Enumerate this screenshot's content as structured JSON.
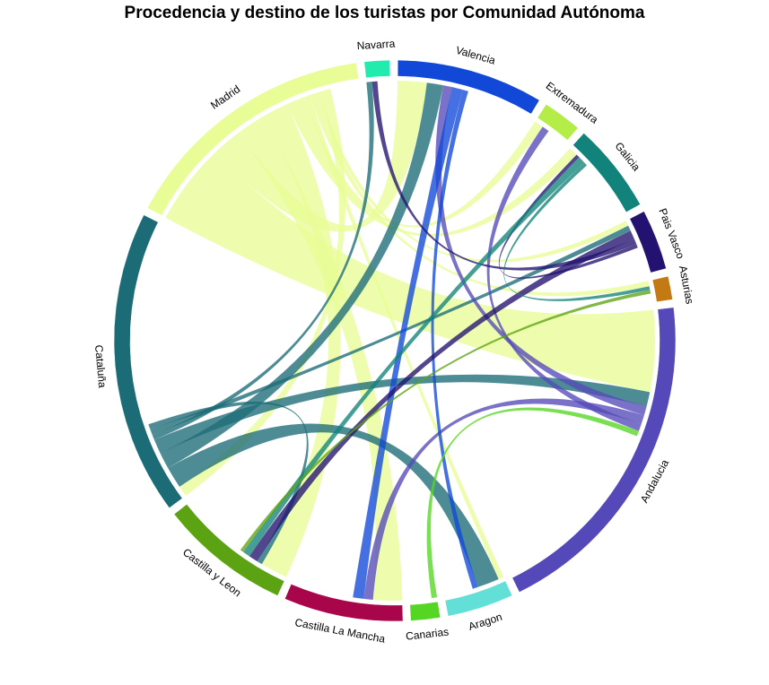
{
  "chart_data": {
    "type": "chord",
    "title": "Procedencia y destino de los turistas por Comunidad Autónoma",
    "sectors": [
      {
        "name": "Valencia",
        "color": "#1148d8",
        "total": 7.5
      },
      {
        "name": "Extremadura",
        "color": "#b4ec48",
        "total": 2.0
      },
      {
        "name": "Galicia",
        "color": "#12837a",
        "total": 4.6
      },
      {
        "name": "Pais Vasco",
        "color": "#23126f",
        "total": 3.1
      },
      {
        "name": "Asturias",
        "color": "#c47a13",
        "total": 1.2
      },
      {
        "name": "Andalucia",
        "color": "#5549b9",
        "total": 17.4
      },
      {
        "name": "Aragon",
        "color": "#62dfd6",
        "total": 3.4
      },
      {
        "name": "Canarias",
        "color": "#55d622",
        "total": 1.5
      },
      {
        "name": "Castilla La Mancha",
        "color": "#a8054a",
        "total": 6.1
      },
      {
        "name": "Castilla y Leon",
        "color": "#5ca313",
        "total": 6.7
      },
      {
        "name": "Cataluña",
        "color": "#1c6c77",
        "total": 15.6
      },
      {
        "name": "Madrid",
        "color": "#e8fd96",
        "total": 13.3
      },
      {
        "name": "Navarra",
        "color": "#21ecae",
        "total": 1.3
      }
    ],
    "flows": [
      {
        "from": "Madrid",
        "to": "Andalucia",
        "value": 4.5
      },
      {
        "from": "Madrid",
        "to": "Valencia",
        "value": 1.6
      },
      {
        "from": "Madrid",
        "to": "Castilla La Mancha",
        "value": 1.6
      },
      {
        "from": "Madrid",
        "to": "Castilla y Leon",
        "value": 1.5
      },
      {
        "from": "Madrid",
        "to": "Galicia",
        "value": 0.5
      },
      {
        "from": "Madrid",
        "to": "Extremadura",
        "value": 0.5
      },
      {
        "from": "Madrid",
        "to": "Aragon",
        "value": 0.3
      },
      {
        "from": "Madrid",
        "to": "Asturias",
        "value": 0.3
      },
      {
        "from": "Madrid",
        "to": "Pais Vasco",
        "value": 0.3
      },
      {
        "from": "Madrid",
        "to": "Cataluña",
        "value": 0.6
      },
      {
        "from": "Cataluña",
        "to": "Aragon",
        "value": 1.2
      },
      {
        "from": "Cataluña",
        "to": "Valencia",
        "value": 0.9
      },
      {
        "from": "Cataluña",
        "to": "Andalucia",
        "value": 0.8
      },
      {
        "from": "Cataluña",
        "to": "Navarra",
        "value": 0.3
      },
      {
        "from": "Cataluña",
        "to": "Pais Vasco",
        "value": 0.3
      },
      {
        "from": "Cataluña",
        "to": "Castilla y Leon",
        "value": 0.3
      },
      {
        "from": "Andalucia",
        "to": "Valencia",
        "value": 0.5
      },
      {
        "from": "Andalucia",
        "to": "Castilla La Mancha",
        "value": 0.5
      },
      {
        "from": "Andalucia",
        "to": "Extremadura",
        "value": 0.4
      },
      {
        "from": "Valencia",
        "to": "Castilla La Mancha",
        "value": 0.6
      },
      {
        "from": "Valencia",
        "to": "Aragon",
        "value": 0.3
      },
      {
        "from": "Pais Vasco",
        "to": "Castilla y Leon",
        "value": 0.5
      },
      {
        "from": "Pais Vasco",
        "to": "Navarra",
        "value": 0.3
      },
      {
        "from": "Pais Vasco",
        "to": "Galicia",
        "value": 0.2
      },
      {
        "from": "Galicia",
        "to": "Castilla y Leon",
        "value": 0.4
      },
      {
        "from": "Galicia",
        "to": "Asturias",
        "value": 0.2
      },
      {
        "from": "Castilla y Leon",
        "to": "Asturias",
        "value": 0.2
      },
      {
        "from": "Canarias",
        "to": "Andalucia",
        "value": 0.3
      }
    ]
  }
}
